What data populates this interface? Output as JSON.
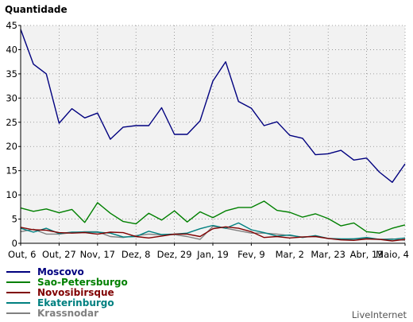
{
  "chart_data": {
    "type": "line",
    "title": "Quantidade",
    "xlabel": "",
    "ylabel": "",
    "ylim": [
      0,
      45
    ],
    "y_ticks": [
      0,
      5,
      10,
      15,
      20,
      25,
      30,
      35,
      40,
      45
    ],
    "x_tick_labels": [
      "Out, 6",
      "Out, 27",
      "Nov, 17",
      "Dez, 8",
      "Dez, 29",
      "Jan, 19",
      "Fev, 9",
      "Mar, 2",
      "Mar, 23",
      "Abr, 13",
      "Maio, 4"
    ],
    "x_tick_index_step": 3,
    "point_count": 31,
    "grid": true,
    "legend_position": "bottom-left",
    "credit": "LiveInternet",
    "series": [
      {
        "name": "Moscovo",
        "color": "#00007f",
        "values": [
          44.2,
          37,
          35,
          24.8,
          27.8,
          25.9,
          26.9,
          21.5,
          24,
          24.3,
          24.3,
          28,
          22.5,
          22.5,
          25.3,
          33.5,
          37.5,
          29.3,
          27.9,
          24.3,
          25.1,
          22.3,
          21.7,
          18.3,
          18.5,
          19.2,
          17.2,
          17.6,
          14.7,
          12.6,
          16.4
        ]
      },
      {
        "name": "Sao-Petersburgo",
        "color": "#008000",
        "values": [
          7.3,
          6.6,
          7.1,
          6.3,
          7,
          4.3,
          8.4,
          6.2,
          4.5,
          4,
          6.2,
          4.8,
          6.7,
          4.4,
          6.5,
          5.3,
          6.7,
          7.4,
          7.4,
          8.7,
          6.8,
          6.4,
          5.4,
          6.1,
          5.1,
          3.6,
          4.2,
          2.4,
          2.1,
          3.1,
          3.8
        ]
      },
      {
        "name": "Novosibirsque",
        "color": "#800000",
        "values": [
          3.3,
          2.8,
          2.7,
          2.2,
          2.1,
          2.2,
          1.9,
          2.3,
          2.2,
          1.4,
          1.1,
          1.5,
          1.9,
          1.9,
          1.4,
          3,
          3.4,
          3.1,
          2.4,
          1.2,
          1.4,
          1.1,
          1.3,
          1.4,
          1,
          0.7,
          0.6,
          0.9,
          0.8,
          0.5,
          0.8
        ]
      },
      {
        "name": "Ekaterinburgo",
        "color": "#008080",
        "values": [
          3.1,
          2.3,
          3.1,
          2,
          2.3,
          2.3,
          2.3,
          2.1,
          1.3,
          1.4,
          2.5,
          1.8,
          1.9,
          2.1,
          3,
          3.7,
          3.1,
          4.2,
          2.8,
          2.2,
          1.5,
          1.7,
          1.2,
          1.6,
          1,
          0.9,
          0.9,
          1.2,
          0.8,
          0.8,
          1.1
        ]
      },
      {
        "name": "Krassnodar",
        "color": "#808080",
        "values": [
          2.4,
          2.9,
          1.9,
          1.9,
          2.2,
          2.4,
          2.4,
          1.4,
          1.2,
          1.6,
          1.9,
          1.7,
          1.8,
          1.4,
          0.8,
          3.5,
          3.1,
          2.6,
          2.1,
          2.1,
          1.9,
          1.6,
          1.3,
          1.5,
          1,
          0.8,
          0.9,
          1,
          0.8,
          0.9,
          0.6
        ]
      }
    ]
  }
}
